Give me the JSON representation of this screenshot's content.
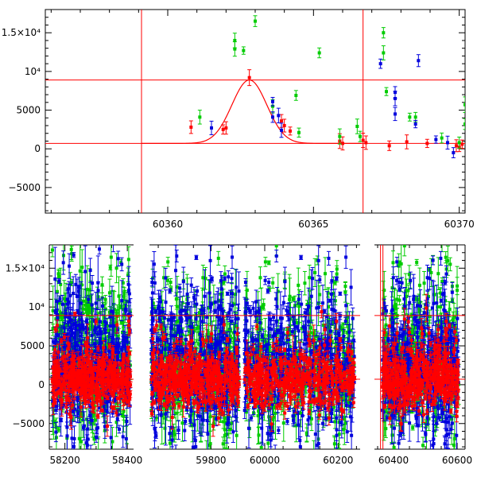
{
  "chart_data": [
    {
      "type": "scatter",
      "x": {
        "range": [
          60355.8,
          60370.2
        ],
        "ticks": [
          60360,
          60365,
          60370
        ],
        "tick_labels": [
          "60360",
          "60365",
          "60370"
        ]
      },
      "y": {
        "range": [
          -8300,
          18000
        ],
        "ticks": [
          -5000,
          0,
          5000,
          10000,
          15000
        ],
        "tick_labels": [
          "−5000",
          "0",
          "5000",
          "10⁴",
          "1.5×10⁴"
        ]
      },
      "grid": false,
      "vlines": [
        60359.1,
        60366.7
      ],
      "hlines": [
        700,
        8900
      ],
      "curve": {
        "type": "gaussian",
        "baseline": 700,
        "peak_x": 60362.8,
        "peak_y": 8900,
        "sigma": 0.6
      },
      "series": [
        {
          "color": "#ff0000",
          "points": [
            [
              60360.8,
              2800
            ],
            [
              60361.9,
              2500
            ],
            [
              60362.0,
              2700
            ],
            [
              60362.8,
              9200
            ],
            [
              60363.9,
              3600
            ],
            [
              60364.0,
              3000
            ],
            [
              60364.2,
              2300
            ],
            [
              60365.9,
              1000
            ],
            [
              60366.0,
              700
            ],
            [
              60366.7,
              1100
            ],
            [
              60366.8,
              800
            ],
            [
              60367.6,
              400
            ],
            [
              60368.2,
              900
            ],
            [
              60368.9,
              700
            ],
            [
              60369.9,
              400
            ],
            [
              60370.0,
              200
            ],
            [
              60370.1,
              600
            ]
          ]
        },
        {
          "color": "#00cc00",
          "points": [
            [
              60361.1,
              4100
            ],
            [
              60362.3,
              14000
            ],
            [
              60362.3,
              12900
            ],
            [
              60362.6,
              12700
            ],
            [
              60363.0,
              16500
            ],
            [
              60363.6,
              5500
            ],
            [
              60364.4,
              6900
            ],
            [
              60364.5,
              2100
            ],
            [
              60365.2,
              12400
            ],
            [
              60365.9,
              1600
            ],
            [
              60366.5,
              2900
            ],
            [
              60366.6,
              1600
            ],
            [
              60367.4,
              15000
            ],
            [
              60367.4,
              12400
            ],
            [
              60367.5,
              7400
            ],
            [
              60368.3,
              4100
            ],
            [
              60368.5,
              4100
            ],
            [
              60369.4,
              1400
            ],
            [
              60370.0,
              800
            ],
            [
              60370.2,
              5700
            ],
            [
              60370.2,
              3200
            ]
          ]
        },
        {
          "color": "#0000dd",
          "points": [
            [
              60361.5,
              2700
            ],
            [
              60363.6,
              6100
            ],
            [
              60363.6,
              4100
            ],
            [
              60363.8,
              4300
            ],
            [
              60363.9,
              2400
            ],
            [
              60367.3,
              11000
            ],
            [
              60367.8,
              7300
            ],
            [
              60367.8,
              6500
            ],
            [
              60367.8,
              4500
            ],
            [
              60368.5,
              3200
            ],
            [
              60368.6,
              11400
            ],
            [
              60369.2,
              1200
            ],
            [
              60369.6,
              800
            ],
            [
              60369.8,
              -500
            ]
          ]
        }
      ]
    },
    {
      "type": "scatter",
      "x": {
        "ticks": [
          58200,
          58400,
          59800,
          60000,
          60200,
          60400,
          60600
        ],
        "tick_labels": [
          "58200",
          "58400",
          "59800",
          "60000",
          "60200",
          "60400",
          "60600"
        ]
      },
      "y": {
        "range": [
          -8300,
          18000
        ],
        "ticks": [
          -5000,
          0,
          5000,
          10000,
          15000
        ],
        "tick_labels": [
          "−5000",
          "0",
          "5000",
          "10⁴",
          "1.5×10⁴"
        ]
      },
      "segments": [
        {
          "x_range": [
            58150,
            58420
          ],
          "clusters": [
            [
              58160,
              58410
            ]
          ]
        },
        {
          "x_range": [
            59625,
            59885
          ],
          "clusters": [
            [
              59630,
              59880
            ]
          ]
        },
        {
          "x_range": [
            59935,
            60260
          ],
          "clusters": [
            [
              59945,
              60245
            ]
          ]
        },
        {
          "x_range": [
            60340,
            60625
          ],
          "clusters": [
            [
              60365,
              60605
            ]
          ]
        }
      ],
      "vlines": [
        60359.1,
        60366.7
      ],
      "hlines": [
        700,
        8900
      ],
      "series_colors": [
        "#00cc00",
        "#0000dd",
        "#ff0000"
      ]
    }
  ]
}
